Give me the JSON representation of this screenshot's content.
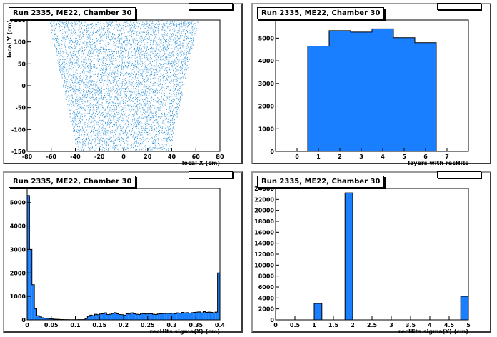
{
  "pads": [
    {
      "title": "Run 2335, ME22, Chamber 30"
    },
    {
      "title": "Run 2335, ME22, Chamber 30"
    },
    {
      "title": "Run 2335, ME22, Chamber 30"
    },
    {
      "title": "Run 2335, ME22, Chamber 30"
    }
  ],
  "colors": {
    "fill": "#1a7fff",
    "scatter": "#2a8fd8",
    "frame": "#000000"
  },
  "chart_data": [
    {
      "type": "scatter",
      "title": "Run 2335, ME22, Chamber 30",
      "xlabel": "local X (cm)",
      "ylabel": "local Y (cm)",
      "xlim": [
        -80,
        80
      ],
      "ylim": [
        -150,
        150
      ],
      "xticks": [
        -80,
        -60,
        -40,
        -20,
        0,
        20,
        40,
        60,
        80
      ],
      "yticks": [
        -150,
        -100,
        -50,
        0,
        50,
        100,
        150
      ],
      "region": {
        "y_bottom": -150,
        "y_top": 150,
        "half_width_bottom": 38,
        "half_width_top": 62
      }
    },
    {
      "type": "bar",
      "title": "Run 2335, ME22, Chamber 30",
      "xlabel": "layers with recHits",
      "ylabel": "",
      "xlim": [
        -1,
        8
      ],
      "ylim": [
        0,
        5800
      ],
      "xticks": [
        0,
        1,
        2,
        3,
        4,
        5,
        6,
        7
      ],
      "yticks": [
        0,
        1000,
        2000,
        3000,
        4000,
        5000
      ],
      "x": [
        1,
        2,
        3,
        4,
        5,
        6
      ],
      "values": [
        4650,
        5330,
        5270,
        5410,
        5020,
        4800
      ]
    },
    {
      "type": "bar",
      "title": "Run 2335, ME22, Chamber 30",
      "xlabel": "recHits sigma(X) (cm)",
      "ylabel": "",
      "xlim": [
        0,
        0.4
      ],
      "ylim": [
        0,
        5600
      ],
      "xticks": [
        0,
        0.05,
        0.1,
        0.15,
        0.2,
        0.25,
        0.3,
        0.35,
        0.4
      ],
      "xtick_labels": [
        "0",
        "0.05",
        "0.1",
        "0.15",
        "0.2",
        "0.25",
        "0.3",
        "0.35",
        "0.4"
      ],
      "yticks": [
        0,
        1000,
        2000,
        3000,
        4000,
        5000
      ],
      "bin_width": 0.005,
      "values": [
        5300,
        3000,
        1500,
        480,
        180,
        130,
        90,
        70,
        60,
        50,
        40,
        30,
        25,
        20,
        15,
        10,
        10,
        8,
        8,
        8,
        8,
        10,
        10,
        10,
        60,
        150,
        200,
        180,
        240,
        220,
        250,
        260,
        300,
        230,
        240,
        270,
        310,
        260,
        230,
        220,
        200,
        260,
        250,
        300,
        260,
        240,
        230,
        270,
        260,
        250,
        270,
        260,
        240,
        230,
        250,
        260,
        270,
        270,
        280,
        270,
        290,
        260,
        300,
        280,
        320,
        300,
        310,
        290,
        310,
        320,
        330,
        340,
        300,
        350,
        320,
        330,
        320,
        300,
        330,
        2000
      ]
    },
    {
      "type": "bar",
      "title": "Run 2335, ME22, Chamber 30",
      "xlabel": "recHits sigma(Y) (cm)",
      "ylabel": "",
      "xlim": [
        0,
        5
      ],
      "ylim": [
        0,
        24000
      ],
      "xticks": [
        0,
        0.5,
        1,
        1.5,
        2,
        2.5,
        3,
        3.5,
        4,
        4.5,
        5
      ],
      "xtick_labels": [
        "0",
        "0.5",
        "1",
        "1.5",
        "2",
        "2.5",
        "3",
        "3.5",
        "4",
        "4.5",
        "5"
      ],
      "yticks": [
        0,
        2000,
        4000,
        6000,
        8000,
        10000,
        12000,
        14000,
        16000,
        18000,
        20000,
        22000,
        24000
      ],
      "bins": [
        {
          "x0": 1.0,
          "x1": 1.2,
          "value": 3000
        },
        {
          "x0": 1.8,
          "x1": 2.0,
          "value": 23200
        },
        {
          "x0": 4.8,
          "x1": 5.0,
          "value": 4300
        }
      ]
    }
  ]
}
